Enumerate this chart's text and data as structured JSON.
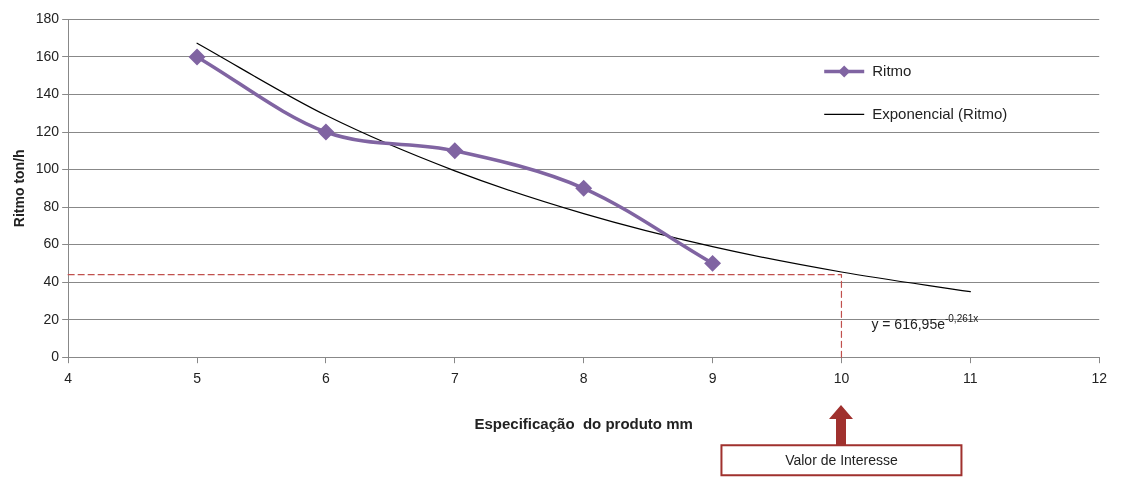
{
  "chart_data": {
    "type": "line",
    "xlabel": "Especificação  do produto mm",
    "ylabel": "Ritmo ton/h",
    "xlim": [
      4,
      12
    ],
    "xticks": [
      4,
      5,
      6,
      7,
      8,
      9,
      10,
      11,
      12
    ],
    "ylim": [
      0,
      180
    ],
    "yticks": [
      0,
      20,
      40,
      60,
      80,
      100,
      120,
      140,
      160,
      180
    ],
    "grid": "y",
    "legend": "top right",
    "series": [
      {
        "name": "Ritmo",
        "color": "#8064a2",
        "x": [
          5,
          6,
          7,
          8,
          9
        ],
        "values": [
          160,
          120,
          110,
          90,
          50
        ],
        "marker": "diamond",
        "line_style": "solid"
      },
      {
        "name": "Exponencial (Ritmo)",
        "color": "#000000",
        "x": [
          5,
          6,
          7,
          8,
          9,
          10,
          11
        ],
        "values": [
          167.3,
          128.9,
          99.3,
          76.5,
          58.9,
          45.4,
          34.9
        ],
        "marker": "none",
        "line_style": "solid"
      },
      {
        "color": "#c0504d",
        "x": [
          4,
          10,
          10
        ],
        "values": [
          44,
          44,
          0
        ],
        "marker": "none",
        "line_style": "dashed"
      }
    ],
    "annotations": [
      {
        "text": "y = 616,95e$^{-0,261x}$",
        "x": 11,
        "y": 35
      },
      "Valor de Interesse"
    ]
  }
}
